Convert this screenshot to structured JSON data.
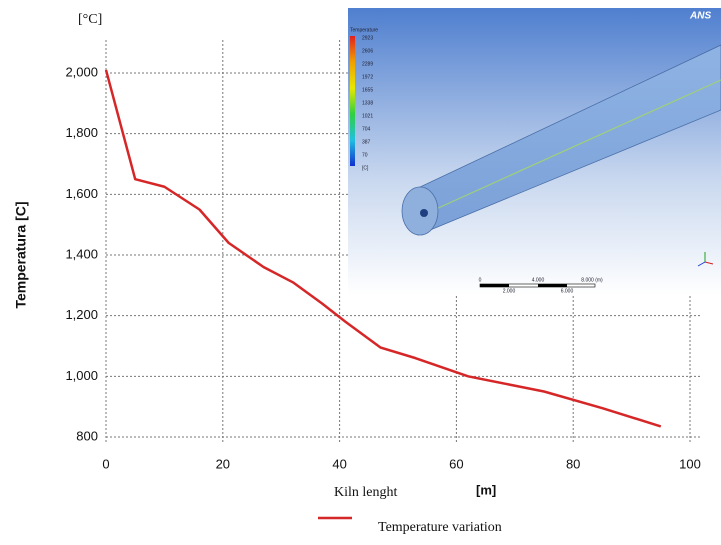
{
  "chart_data": {
    "type": "line",
    "unit_label": "[°C]",
    "y_label": "Temperatura [C]",
    "x_label": "Kiln lenght",
    "x_unit": "[m]",
    "x": [
      0,
      5,
      10,
      16,
      21,
      27,
      32,
      37,
      41,
      47,
      53,
      62,
      75,
      85,
      95
    ],
    "series": [
      {
        "name": "Temperature variation",
        "color": "#d62728",
        "values": [
          2010,
          1650,
          1625,
          1550,
          1440,
          1360,
          1310,
          1240,
          1180,
          1095,
          1060,
          1000,
          950,
          895,
          835
        ]
      }
    ],
    "xlim": [
      0,
      100
    ],
    "xticks": [
      0,
      20,
      40,
      60,
      80,
      100
    ],
    "ylim": [
      800,
      2000
    ],
    "yticks": [
      {
        "value": 800,
        "label": "800"
      },
      {
        "value": 1000,
        "label": "1,000"
      },
      {
        "value": 1200,
        "label": "1,200"
      },
      {
        "value": 1400,
        "label": "1,400"
      },
      {
        "value": 1600,
        "label": "1,600"
      },
      {
        "value": 1800,
        "label": "1,800"
      },
      {
        "value": 2000,
        "label": "2,000"
      }
    ],
    "grid": true,
    "inset": {
      "title": "Temperature",
      "logo": "ANS",
      "scale_labels": [
        "2923",
        "2606",
        "2289",
        "1972",
        "1655",
        "1338",
        "1021",
        "704",
        "387",
        "70",
        "[C]"
      ],
      "ruler_labels": [
        "0",
        "4.000",
        "8.000 (m)",
        "2.000",
        "6.000"
      ]
    }
  }
}
